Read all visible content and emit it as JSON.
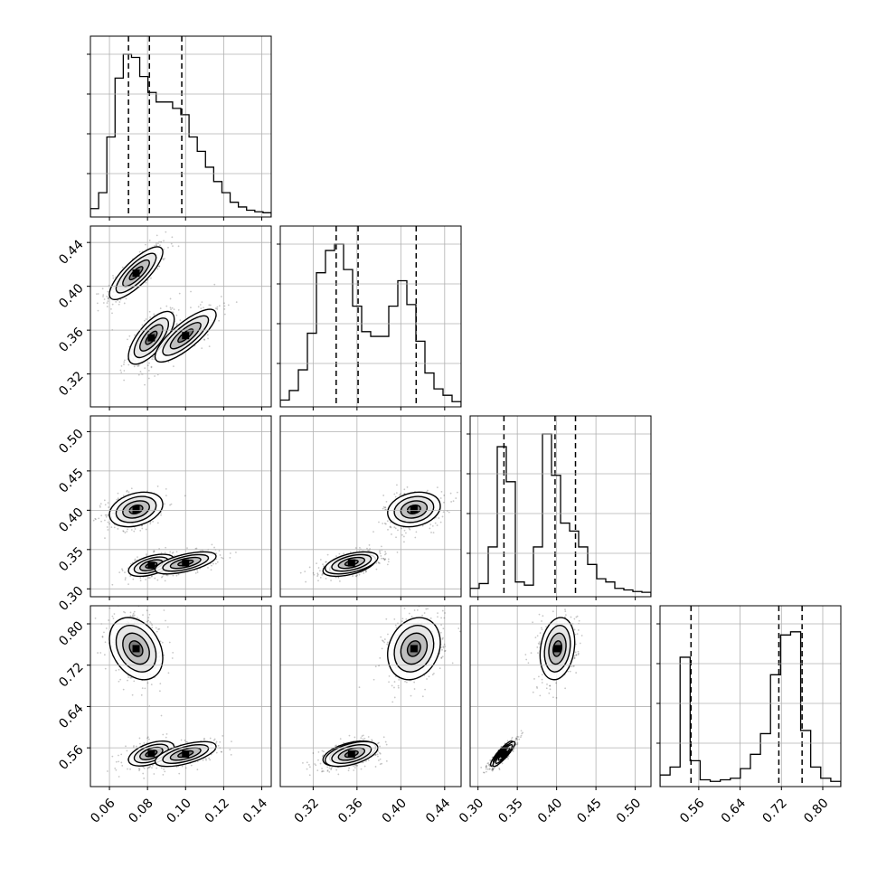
{
  "chart_data": {
    "type": "corner",
    "n_params": 4,
    "grid": true,
    "params": [
      {
        "range": [
          0.05,
          0.145
        ],
        "ticks": [
          0.06,
          0.08,
          0.1,
          0.12,
          0.14
        ],
        "tick_labels": [
          "0.06",
          "0.08",
          "0.10",
          "0.12",
          "0.14"
        ],
        "quantiles": [
          0.07,
          0.081,
          0.098
        ]
      },
      {
        "range": [
          0.29,
          0.455
        ],
        "ticks": [
          0.32,
          0.36,
          0.4,
          0.44
        ],
        "tick_labels": [
          "0.32",
          "0.36",
          "0.40",
          "0.44"
        ],
        "quantiles": [
          0.341,
          0.361,
          0.414
        ]
      },
      {
        "range": [
          0.29,
          0.52
        ],
        "ticks": [
          0.3,
          0.35,
          0.4,
          0.45,
          0.5
        ],
        "tick_labels": [
          "0.30",
          "0.35",
          "0.40",
          "0.45",
          "0.50"
        ],
        "quantiles": [
          0.333,
          0.398,
          0.424
        ]
      },
      {
        "range": [
          0.485,
          0.835
        ],
        "ticks": [
          0.56,
          0.64,
          0.72,
          0.8
        ],
        "tick_labels": [
          "0.56",
          "0.64",
          "0.72",
          "0.80"
        ],
        "quantiles": [
          0.545,
          0.715,
          0.76
        ]
      }
    ],
    "histograms": [
      [
        0.03,
        0.13,
        0.48,
        0.85,
        1.0,
        0.98,
        0.86,
        0.76,
        0.7,
        0.7,
        0.66,
        0.62,
        0.48,
        0.39,
        0.29,
        0.2,
        0.13,
        0.07,
        0.04,
        0.02,
        0.01,
        0.004
      ],
      [
        0.02,
        0.08,
        0.21,
        0.44,
        0.82,
        0.96,
        1.0,
        0.84,
        0.61,
        0.45,
        0.42,
        0.42,
        0.61,
        0.77,
        0.62,
        0.39,
        0.19,
        0.09,
        0.05,
        0.01
      ],
      [
        0.03,
        0.06,
        0.29,
        0.92,
        0.7,
        0.07,
        0.05,
        0.29,
        1.0,
        0.74,
        0.44,
        0.39,
        0.29,
        0.18,
        0.09,
        0.07,
        0.03,
        0.02,
        0.01,
        0.005
      ],
      [
        0.05,
        0.1,
        0.79,
        0.14,
        0.02,
        0.01,
        0.02,
        0.03,
        0.09,
        0.18,
        0.31,
        0.68,
        0.93,
        0.95,
        0.33,
        0.1,
        0.03,
        0.01
      ]
    ],
    "modes": [
      {
        "w": 0.42,
        "mean": [
          0.074,
          0.412,
          0.401,
          0.752
        ],
        "sd": [
          0.007,
          0.012,
          0.011,
          0.03
        ],
        "rho": {
          "01": 0.8,
          "02": 0.3,
          "03": -0.3,
          "12": 0.2,
          "13": 0.2,
          "23": 0.2
        }
      },
      {
        "w": 0.28,
        "mean": [
          0.082,
          0.353,
          0.33,
          0.549
        ],
        "sd": [
          0.006,
          0.012,
          0.007,
          0.012
        ],
        "rho": {
          "01": 0.7,
          "02": 0.5,
          "03": 0.5,
          "12": 0.5,
          "13": 0.5,
          "23": 0.9
        }
      },
      {
        "w": 0.3,
        "mean": [
          0.1,
          0.355,
          0.333,
          0.548
        ],
        "sd": [
          0.008,
          0.012,
          0.007,
          0.012
        ],
        "rho": {
          "01": 0.8,
          "02": 0.6,
          "03": 0.6,
          "12": 0.5,
          "13": 0.5,
          "23": 0.9
        }
      }
    ],
    "contour_levels": [
      0.118,
      0.393,
      0.675,
      0.865
    ],
    "colors": {
      "points": "#000000",
      "contour_line": "#000000",
      "grid": "#b0b0b0",
      "quantile_line": "#000000"
    }
  }
}
